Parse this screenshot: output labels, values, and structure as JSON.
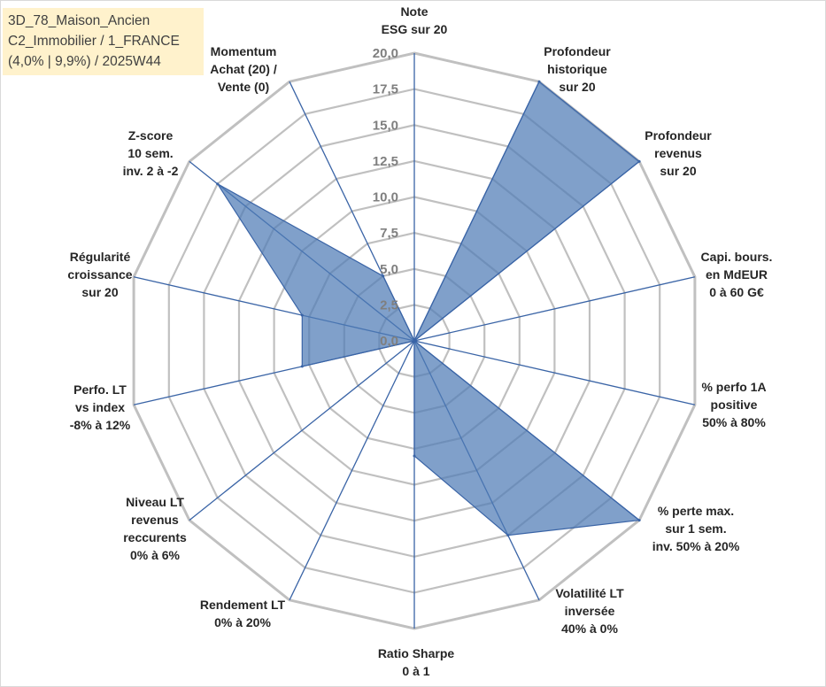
{
  "title_lines": [
    "3D_78_Maison_Ancien",
    "C2_Immobilier / 1_FRANCE",
    "(4,0% | 9,9%) / 2025W44"
  ],
  "chart_data": {
    "type": "radar",
    "axis_min": 0,
    "axis_max": 20,
    "grid_step": 2.5,
    "ticks": [
      "0,0",
      "2,5",
      "5,0",
      "7,5",
      "10,0",
      "12,5",
      "15,0",
      "17,5",
      "20,0"
    ],
    "axes": [
      {
        "label": [
          "Note",
          "ESG sur 20"
        ],
        "value": 0
      },
      {
        "label": [
          "Profondeur",
          "historique",
          "sur 20"
        ],
        "value": 20
      },
      {
        "label": [
          "Profondeur",
          "revenus",
          "sur 20"
        ],
        "value": 20
      },
      {
        "label": [
          "Capi. bours.",
          "en MdEUR",
          "0 à 60 G€"
        ],
        "value": 0
      },
      {
        "label": [
          "% perfo 1A",
          "positive",
          "50% à 80%"
        ],
        "value": 0
      },
      {
        "label": [
          "% perte max.",
          "sur 1 sem.",
          "inv. 50% à 20%"
        ],
        "value": 20
      },
      {
        "label": [
          "Volatilité LT",
          "inversée",
          "40% à 0%"
        ],
        "value": 15
      },
      {
        "label": [
          "Ratio Sharpe",
          "0 à 1"
        ],
        "value": 8
      },
      {
        "label": [
          "Rendement LT",
          "0% à 20%"
        ],
        "value": 0
      },
      {
        "label": [
          "Niveau LT",
          "revenus",
          "reccurents",
          "0% à 6%"
        ],
        "value": 0
      },
      {
        "label": [
          "Perfo. LT",
          "vs index",
          "-8% à 12%"
        ],
        "value": 8
      },
      {
        "label": [
          "Régularité",
          "croissance",
          "sur 20"
        ],
        "value": 8
      },
      {
        "label": [
          "Z-score",
          "10 sem.",
          "inv. 2 à -2"
        ],
        "value": 17.5
      },
      {
        "label": [
          "Momentum",
          "Achat (20) /",
          "Vente (0)"
        ],
        "value": 5
      }
    ],
    "fill_color": "#4f7bb6",
    "line_color": "#3a64a6",
    "grid_color": "#c0c0c0",
    "spoke_color": "#3a64a6"
  }
}
